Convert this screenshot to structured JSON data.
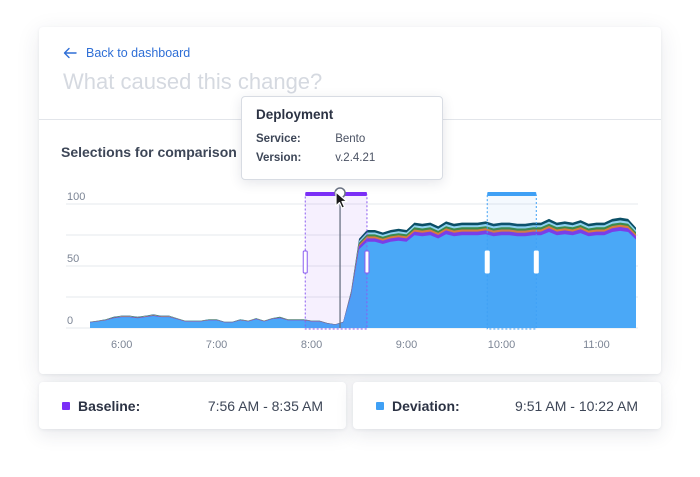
{
  "header": {
    "back_label": "Back to dashboard",
    "title": "What caused this change?"
  },
  "section": {
    "title": "Selections for comparison"
  },
  "tooltip": {
    "title": "Deployment",
    "rows": [
      {
        "key": "Service:",
        "value": "Bento"
      },
      {
        "key": "Version:",
        "value": "v.2.4.21"
      }
    ]
  },
  "baseline": {
    "label": "Baseline:",
    "range": "7:56 AM - 8:35 AM",
    "color": "#7b2ff7"
  },
  "deviation": {
    "label": "Deviation:",
    "range": "9:51 AM - 10:22 AM",
    "color": "#3fa0f5"
  },
  "chart_data": {
    "type": "area",
    "ylim": [
      0,
      100
    ],
    "y_ticks": [
      "0",
      "50",
      "100"
    ],
    "x_ticks": [
      "6:00",
      "7:00",
      "8:00",
      "9:00",
      "10:00",
      "11:00"
    ],
    "grid": true,
    "colors": {
      "main": "#4aa8f7",
      "layers": [
        "#7a3ee8",
        "#d97b3e",
        "#3d8a4a",
        "#8fd2f0",
        "#0b4f66"
      ]
    },
    "series_total": [
      5,
      6,
      7,
      9,
      10,
      10,
      9,
      10,
      11,
      10,
      10,
      8,
      6,
      6,
      6,
      7,
      7,
      5,
      5,
      7,
      6,
      8,
      6,
      8,
      9,
      7,
      7,
      7,
      6,
      6,
      4,
      3,
      5,
      30,
      72,
      79,
      79,
      77,
      79,
      80,
      79,
      85,
      84,
      85,
      82,
      86,
      84,
      85,
      85,
      85,
      86,
      84,
      85,
      85,
      84,
      84,
      85,
      85,
      88,
      85,
      86,
      85,
      87,
      84,
      85,
      85,
      88,
      89,
      88,
      81
    ],
    "baseline_window": [
      "7:56",
      "8:35"
    ],
    "deviation_window": [
      "9:51",
      "10:22"
    ],
    "deployment_marker": "8:18"
  }
}
